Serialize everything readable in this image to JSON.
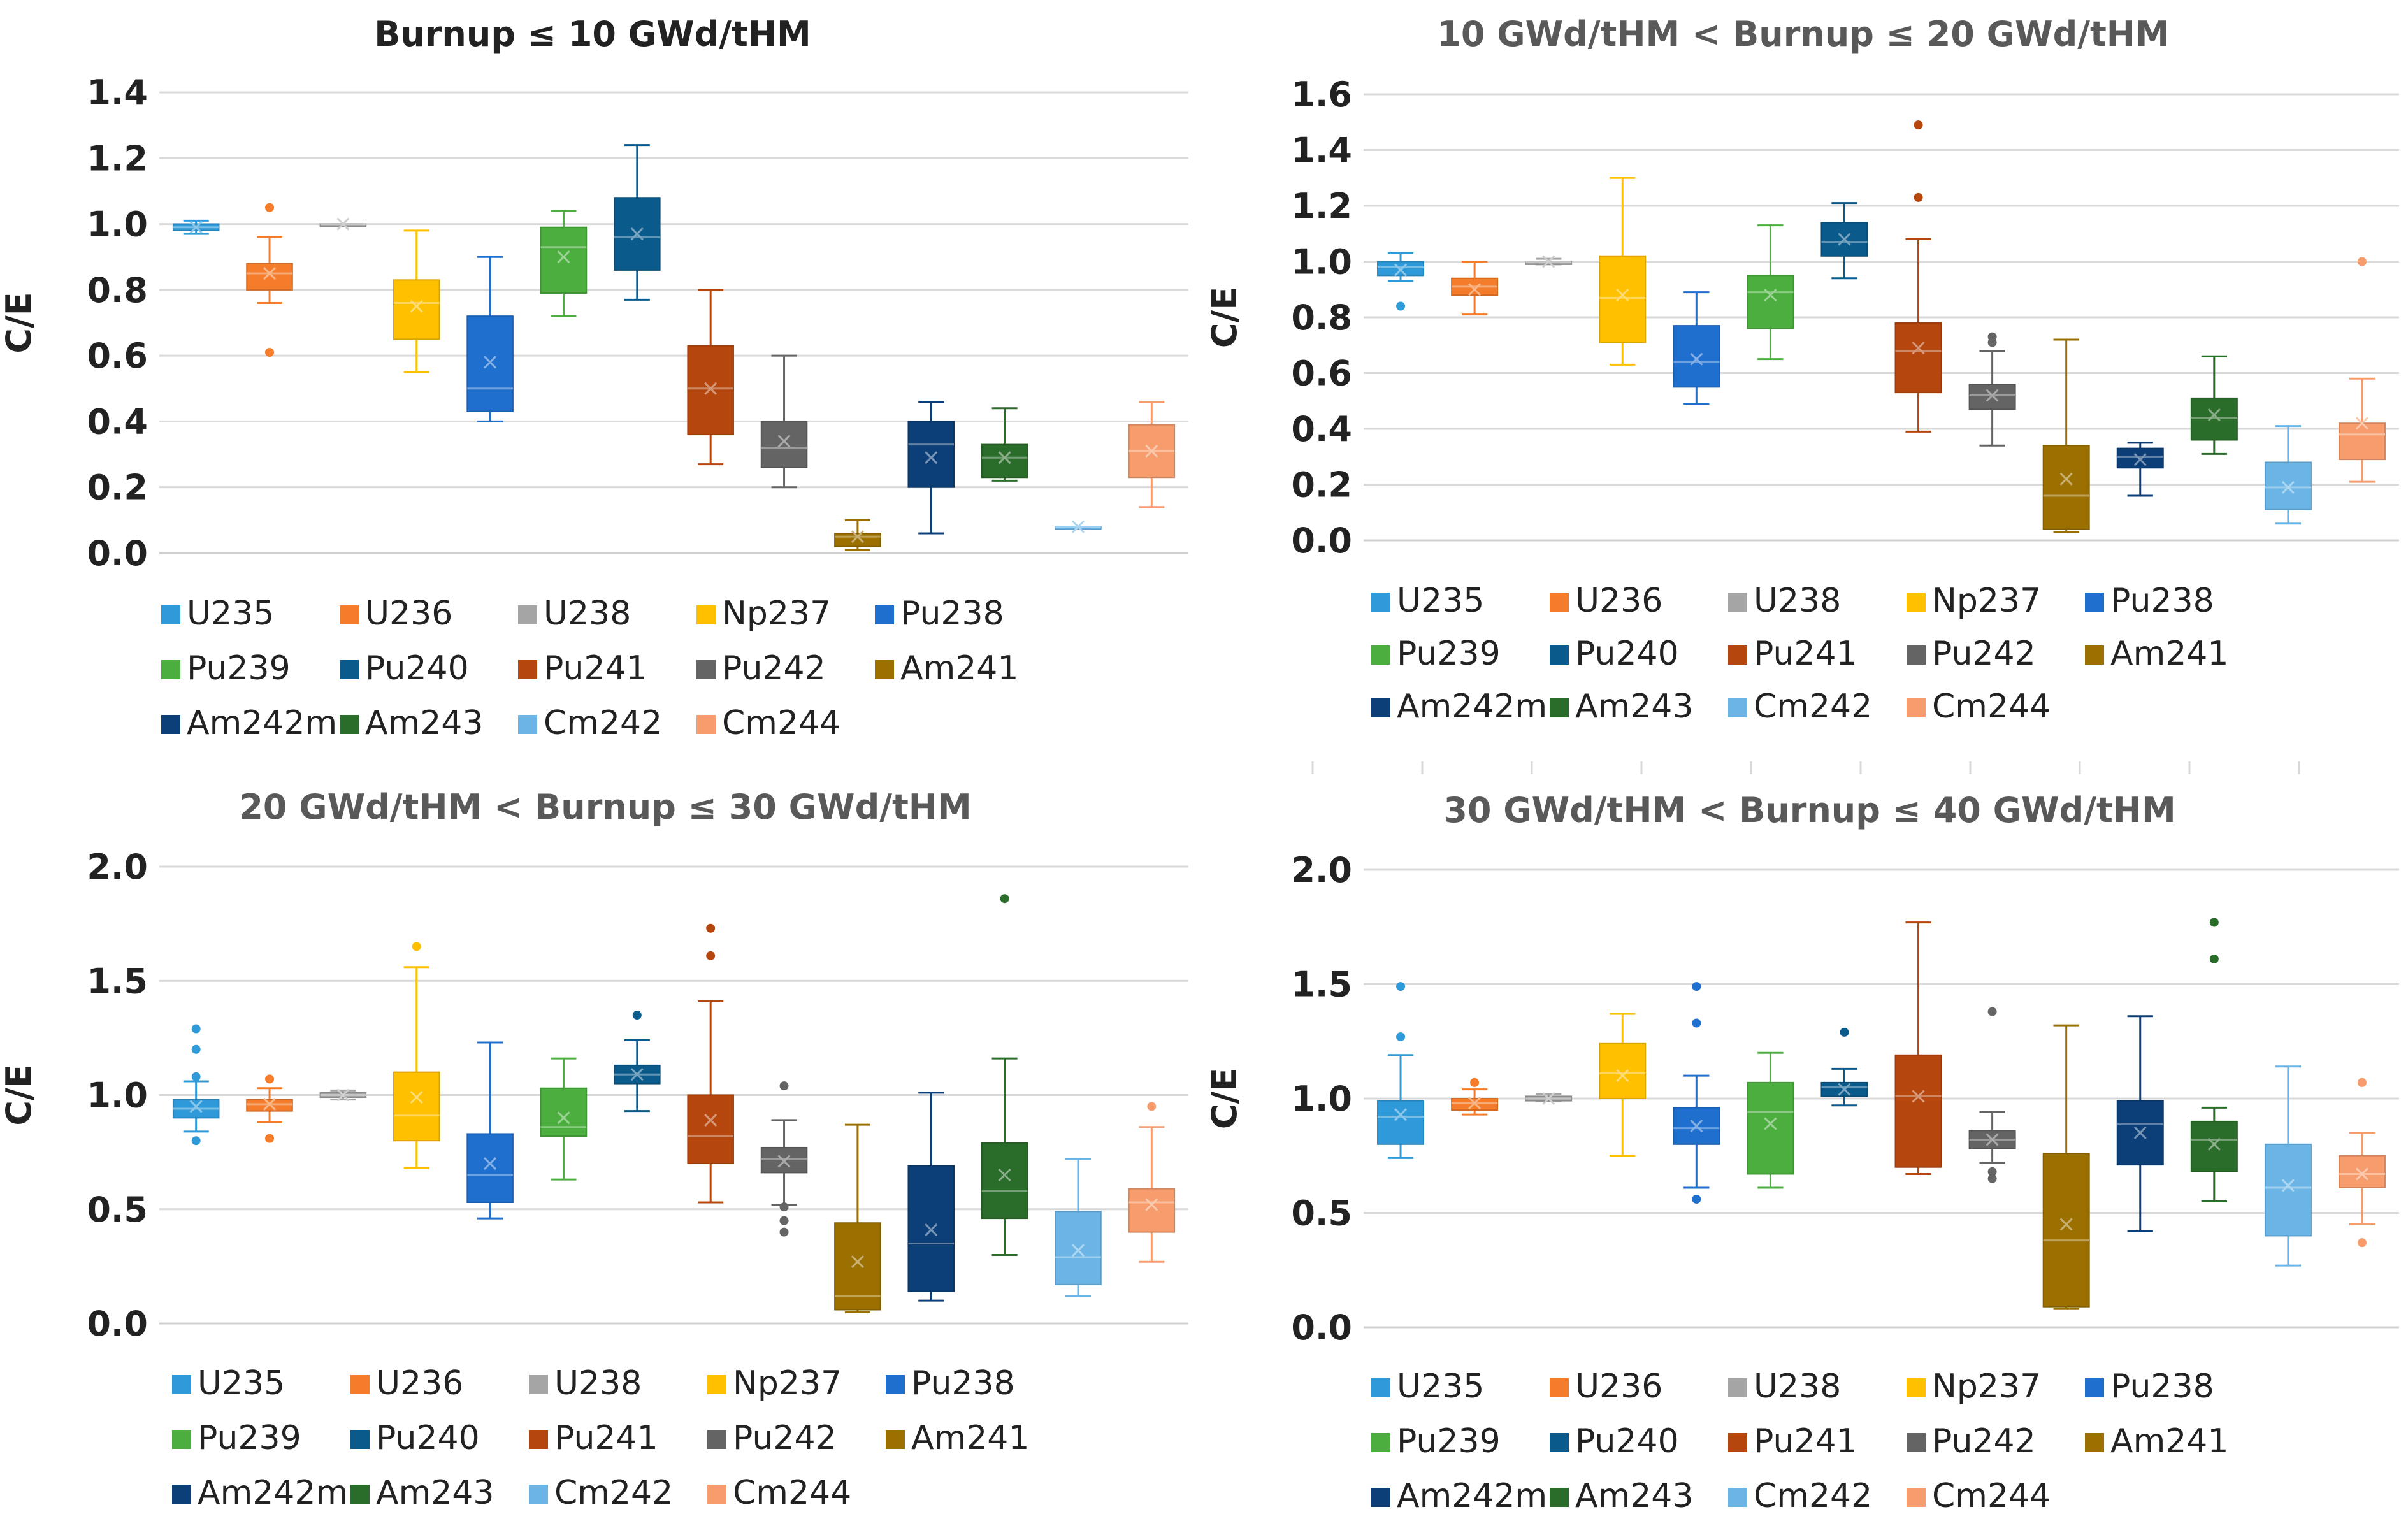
{
  "chart_data": [
    {
      "type": "box",
      "title": "Burnup ≤ 10 GWd/tHM",
      "ylabel": "C/E",
      "ylim": [
        0,
        1.4
      ],
      "yticks": [
        "0.0",
        "0.2",
        "0.4",
        "0.6",
        "0.8",
        "1.0",
        "1.2",
        "1.4"
      ],
      "series": [
        {
          "name": "U235",
          "min": 0.97,
          "q1": 0.98,
          "median": 0.99,
          "q3": 1.0,
          "max": 1.01,
          "mean": 0.99,
          "outliers": []
        },
        {
          "name": "U236",
          "min": 0.76,
          "q1": 0.8,
          "median": 0.85,
          "q3": 0.88,
          "max": 0.96,
          "mean": 0.85,
          "outliers": [
            1.05,
            0.61
          ]
        },
        {
          "name": "U238",
          "min": 1.0,
          "q1": 1.0,
          "median": 1.0,
          "q3": 1.0,
          "max": 1.0,
          "mean": 1.0,
          "outliers": []
        },
        {
          "name": "Np237",
          "min": 0.55,
          "q1": 0.65,
          "median": 0.76,
          "q3": 0.83,
          "max": 0.98,
          "mean": 0.75,
          "outliers": []
        },
        {
          "name": "Pu238",
          "min": 0.4,
          "q1": 0.43,
          "median": 0.5,
          "q3": 0.72,
          "max": 0.9,
          "mean": 0.58,
          "outliers": []
        },
        {
          "name": "Pu239",
          "min": 0.72,
          "q1": 0.79,
          "median": 0.93,
          "q3": 0.99,
          "max": 1.04,
          "mean": 0.9,
          "outliers": []
        },
        {
          "name": "Pu240",
          "min": 0.77,
          "q1": 0.86,
          "median": 0.96,
          "q3": 1.08,
          "max": 1.24,
          "mean": 0.97,
          "outliers": []
        },
        {
          "name": "Pu241",
          "min": 0.27,
          "q1": 0.36,
          "median": 0.5,
          "q3": 0.63,
          "max": 0.8,
          "mean": 0.5,
          "outliers": []
        },
        {
          "name": "Pu242",
          "min": 0.2,
          "q1": 0.26,
          "median": 0.32,
          "q3": 0.4,
          "max": 0.6,
          "mean": 0.34,
          "outliers": []
        },
        {
          "name": "Am241",
          "min": 0.01,
          "q1": 0.02,
          "median": 0.05,
          "q3": 0.06,
          "max": 0.1,
          "mean": 0.05,
          "outliers": []
        },
        {
          "name": "Am242m",
          "min": 0.06,
          "q1": 0.2,
          "median": 0.33,
          "q3": 0.4,
          "max": 0.46,
          "mean": 0.29,
          "outliers": []
        },
        {
          "name": "Am243",
          "min": 0.22,
          "q1": 0.23,
          "median": 0.29,
          "q3": 0.33,
          "max": 0.44,
          "mean": 0.29,
          "outliers": []
        },
        {
          "name": "Cm242",
          "min": 0.08,
          "q1": 0.08,
          "median": 0.08,
          "q3": 0.08,
          "max": 0.08,
          "mean": 0.08,
          "outliers": []
        },
        {
          "name": "Cm244",
          "min": 0.14,
          "q1": 0.23,
          "median": 0.31,
          "q3": 0.39,
          "max": 0.46,
          "mean": 0.31,
          "outliers": []
        }
      ]
    },
    {
      "type": "box",
      "title": "10 GWd/tHM < Burnup ≤ 20 GWd/tHM",
      "ylabel": "C/E",
      "ylim": [
        0,
        1.6
      ],
      "yticks": [
        "0.0",
        "0.2",
        "0.4",
        "0.6",
        "0.8",
        "1.0",
        "1.2",
        "1.4",
        "1.6"
      ],
      "series": [
        {
          "name": "U235",
          "min": 0.93,
          "q1": 0.95,
          "median": 0.98,
          "q3": 1.0,
          "max": 1.03,
          "mean": 0.97,
          "outliers": [
            0.84
          ]
        },
        {
          "name": "U236",
          "min": 0.81,
          "q1": 0.88,
          "median": 0.91,
          "q3": 0.94,
          "max": 1.0,
          "mean": 0.9,
          "outliers": []
        },
        {
          "name": "U238",
          "min": 0.99,
          "q1": 0.99,
          "median": 1.0,
          "q3": 1.0,
          "max": 1.01,
          "mean": 1.0,
          "outliers": []
        },
        {
          "name": "Np237",
          "min": 0.63,
          "q1": 0.71,
          "median": 0.87,
          "q3": 1.02,
          "max": 1.3,
          "mean": 0.88,
          "outliers": []
        },
        {
          "name": "Pu238",
          "min": 0.49,
          "q1": 0.55,
          "median": 0.64,
          "q3": 0.77,
          "max": 0.89,
          "mean": 0.65,
          "outliers": []
        },
        {
          "name": "Pu239",
          "min": 0.65,
          "q1": 0.76,
          "median": 0.89,
          "q3": 0.95,
          "max": 1.13,
          "mean": 0.88,
          "outliers": []
        },
        {
          "name": "Pu240",
          "min": 0.94,
          "q1": 1.02,
          "median": 1.07,
          "q3": 1.14,
          "max": 1.21,
          "mean": 1.08,
          "outliers": []
        },
        {
          "name": "Pu241",
          "min": 0.39,
          "q1": 0.53,
          "median": 0.68,
          "q3": 0.78,
          "max": 1.08,
          "mean": 0.69,
          "outliers": [
            1.49,
            1.23
          ]
        },
        {
          "name": "Pu242",
          "min": 0.34,
          "q1": 0.47,
          "median": 0.52,
          "q3": 0.56,
          "max": 0.68,
          "mean": 0.52,
          "outliers": [
            0.73,
            0.71
          ]
        },
        {
          "name": "Am241",
          "min": 0.03,
          "q1": 0.04,
          "median": 0.16,
          "q3": 0.34,
          "max": 0.72,
          "mean": 0.22,
          "outliers": []
        },
        {
          "name": "Am242m",
          "min": 0.16,
          "q1": 0.26,
          "median": 0.3,
          "q3": 0.33,
          "max": 0.35,
          "mean": 0.29,
          "outliers": []
        },
        {
          "name": "Am243",
          "min": 0.31,
          "q1": 0.36,
          "median": 0.44,
          "q3": 0.51,
          "max": 0.66,
          "mean": 0.45,
          "outliers": []
        },
        {
          "name": "Cm242",
          "min": 0.06,
          "q1": 0.11,
          "median": 0.19,
          "q3": 0.28,
          "max": 0.41,
          "mean": 0.19,
          "outliers": []
        },
        {
          "name": "Cm244",
          "min": 0.21,
          "q1": 0.29,
          "median": 0.38,
          "q3": 0.42,
          "max": 0.58,
          "mean": 0.42,
          "outliers": [
            1.0
          ]
        }
      ]
    },
    {
      "type": "box",
      "title": "20 GWd/tHM < Burnup ≤ 30 GWd/tHM",
      "ylabel": "C/E",
      "ylim": [
        0,
        2.0
      ],
      "yticks": [
        "0.0",
        "0.5",
        "1.0",
        "1.5",
        "2.0"
      ],
      "series": [
        {
          "name": "U235",
          "min": 0.84,
          "q1": 0.9,
          "median": 0.94,
          "q3": 0.98,
          "max": 1.06,
          "mean": 0.95,
          "outliers": [
            1.29,
            1.2,
            1.08,
            0.8
          ]
        },
        {
          "name": "U236",
          "min": 0.88,
          "q1": 0.93,
          "median": 0.96,
          "q3": 0.98,
          "max": 1.03,
          "mean": 0.96,
          "outliers": [
            1.07,
            0.81
          ]
        },
        {
          "name": "U238",
          "min": 0.98,
          "q1": 0.99,
          "median": 1.0,
          "q3": 1.01,
          "max": 1.02,
          "mean": 1.0,
          "outliers": []
        },
        {
          "name": "Np237",
          "min": 0.68,
          "q1": 0.8,
          "median": 0.91,
          "q3": 1.1,
          "max": 1.56,
          "mean": 0.99,
          "outliers": [
            1.65
          ]
        },
        {
          "name": "Pu238",
          "min": 0.46,
          "q1": 0.53,
          "median": 0.65,
          "q3": 0.83,
          "max": 1.23,
          "mean": 0.7,
          "outliers": []
        },
        {
          "name": "Pu239",
          "min": 0.63,
          "q1": 0.82,
          "median": 0.86,
          "q3": 1.03,
          "max": 1.16,
          "mean": 0.9,
          "outliers": []
        },
        {
          "name": "Pu240",
          "min": 0.93,
          "q1": 1.05,
          "median": 1.09,
          "q3": 1.13,
          "max": 1.24,
          "mean": 1.09,
          "outliers": [
            1.35
          ]
        },
        {
          "name": "Pu241",
          "min": 0.53,
          "q1": 0.7,
          "median": 0.82,
          "q3": 1.0,
          "max": 1.41,
          "mean": 0.89,
          "outliers": [
            1.73,
            1.61
          ]
        },
        {
          "name": "Pu242",
          "min": 0.52,
          "q1": 0.66,
          "median": 0.72,
          "q3": 0.77,
          "max": 0.89,
          "mean": 0.71,
          "outliers": [
            1.04,
            0.51,
            0.45,
            0.4
          ]
        },
        {
          "name": "Am241",
          "min": 0.05,
          "q1": 0.06,
          "median": 0.12,
          "q3": 0.44,
          "max": 0.87,
          "mean": 0.27,
          "outliers": []
        },
        {
          "name": "Am242m",
          "min": 0.1,
          "q1": 0.14,
          "median": 0.35,
          "q3": 0.69,
          "max": 1.01,
          "mean": 0.41,
          "outliers": []
        },
        {
          "name": "Am243",
          "min": 0.3,
          "q1": 0.46,
          "median": 0.58,
          "q3": 0.79,
          "max": 1.16,
          "mean": 0.65,
          "outliers": [
            1.86
          ]
        },
        {
          "name": "Cm242",
          "min": 0.12,
          "q1": 0.17,
          "median": 0.29,
          "q3": 0.49,
          "max": 0.72,
          "mean": 0.32,
          "outliers": []
        },
        {
          "name": "Cm244",
          "min": 0.27,
          "q1": 0.4,
          "median": 0.53,
          "q3": 0.59,
          "max": 0.86,
          "mean": 0.52,
          "outliers": [
            0.95
          ]
        }
      ]
    },
    {
      "type": "box",
      "title": "30 GWd/tHM < Burnup ≤ 40 GWd/tHM",
      "ylabel": "C/E",
      "ylim": [
        0,
        2.0
      ],
      "yticks": [
        "0.0",
        "0.5",
        "1.0",
        "1.5",
        "2.0"
      ],
      "series": [
        {
          "name": "U235",
          "min": 0.74,
          "q1": 0.8,
          "median": 0.92,
          "q3": 0.99,
          "max": 1.19,
          "mean": 0.93,
          "outliers": [
            1.49,
            1.27
          ]
        },
        {
          "name": "U236",
          "min": 0.93,
          "q1": 0.95,
          "median": 0.98,
          "q3": 1.0,
          "max": 1.04,
          "mean": 0.98,
          "outliers": [
            1.07
          ]
        },
        {
          "name": "U238",
          "min": 0.99,
          "q1": 0.99,
          "median": 1.0,
          "q3": 1.01,
          "max": 1.02,
          "mean": 1.0,
          "outliers": []
        },
        {
          "name": "Np237",
          "min": 0.75,
          "q1": 1.0,
          "median": 1.11,
          "q3": 1.24,
          "max": 1.37,
          "mean": 1.1,
          "outliers": []
        },
        {
          "name": "Pu238",
          "min": 0.61,
          "q1": 0.8,
          "median": 0.87,
          "q3": 0.96,
          "max": 1.1,
          "mean": 0.88,
          "outliers": [
            1.49,
            1.33,
            0.56
          ]
        },
        {
          "name": "Pu239",
          "min": 0.61,
          "q1": 0.67,
          "median": 0.94,
          "q3": 1.07,
          "max": 1.2,
          "mean": 0.89,
          "outliers": []
        },
        {
          "name": "Pu240",
          "min": 0.97,
          "q1": 1.01,
          "median": 1.05,
          "q3": 1.07,
          "max": 1.13,
          "mean": 1.04,
          "outliers": [
            1.29
          ]
        },
        {
          "name": "Pu241",
          "min": 0.67,
          "q1": 0.7,
          "median": 1.01,
          "q3": 1.19,
          "max": 1.77,
          "mean": 1.01,
          "outliers": []
        },
        {
          "name": "Pu242",
          "min": 0.72,
          "q1": 0.78,
          "median": 0.82,
          "q3": 0.86,
          "max": 0.94,
          "mean": 0.82,
          "outliers": [
            1.38,
            0.68,
            0.65
          ]
        },
        {
          "name": "Am241",
          "min": 0.08,
          "q1": 0.09,
          "median": 0.38,
          "q3": 0.76,
          "max": 1.32,
          "mean": 0.45,
          "outliers": []
        },
        {
          "name": "Am242m",
          "min": 0.42,
          "q1": 0.71,
          "median": 0.89,
          "q3": 0.99,
          "max": 1.36,
          "mean": 0.85,
          "outliers": []
        },
        {
          "name": "Am243",
          "min": 0.55,
          "q1": 0.68,
          "median": 0.82,
          "q3": 0.9,
          "max": 0.96,
          "mean": 0.8,
          "outliers": [
            1.77,
            1.61
          ]
        },
        {
          "name": "Cm242",
          "min": 0.27,
          "q1": 0.4,
          "median": 0.61,
          "q3": 0.8,
          "max": 1.14,
          "mean": 0.62,
          "outliers": []
        },
        {
          "name": "Cm244",
          "min": 0.45,
          "q1": 0.61,
          "median": 0.67,
          "q3": 0.75,
          "max": 0.85,
          "mean": 0.67,
          "outliers": [
            1.07,
            0.37
          ]
        }
      ]
    }
  ],
  "legend": {
    "items": [
      "U235",
      "U236",
      "U238",
      "Np237",
      "Pu238",
      "Pu239",
      "Pu240",
      "Pu241",
      "Pu242",
      "Am241",
      "Am242m",
      "Am243",
      "Cm242",
      "Cm244"
    ],
    "colors": {
      "U235": "#2e9ad9",
      "U236": "#f47c2a",
      "U238": "#a5a5a5",
      "Np237": "#ffc000",
      "Pu238": "#1f6fcf",
      "Pu239": "#4bae3f",
      "Pu240": "#0a5a8c",
      "Pu241": "#b5460d",
      "Pu242": "#646464",
      "Am241": "#9b7000",
      "Am242m": "#0c3f78",
      "Am243": "#2a6c2a",
      "Cm242": "#6bb5e6",
      "Cm244": "#f79c6c"
    }
  },
  "style": {
    "title_color_first": "#222222",
    "title_color_other": "#595959",
    "axis_text_color": "#222222"
  }
}
